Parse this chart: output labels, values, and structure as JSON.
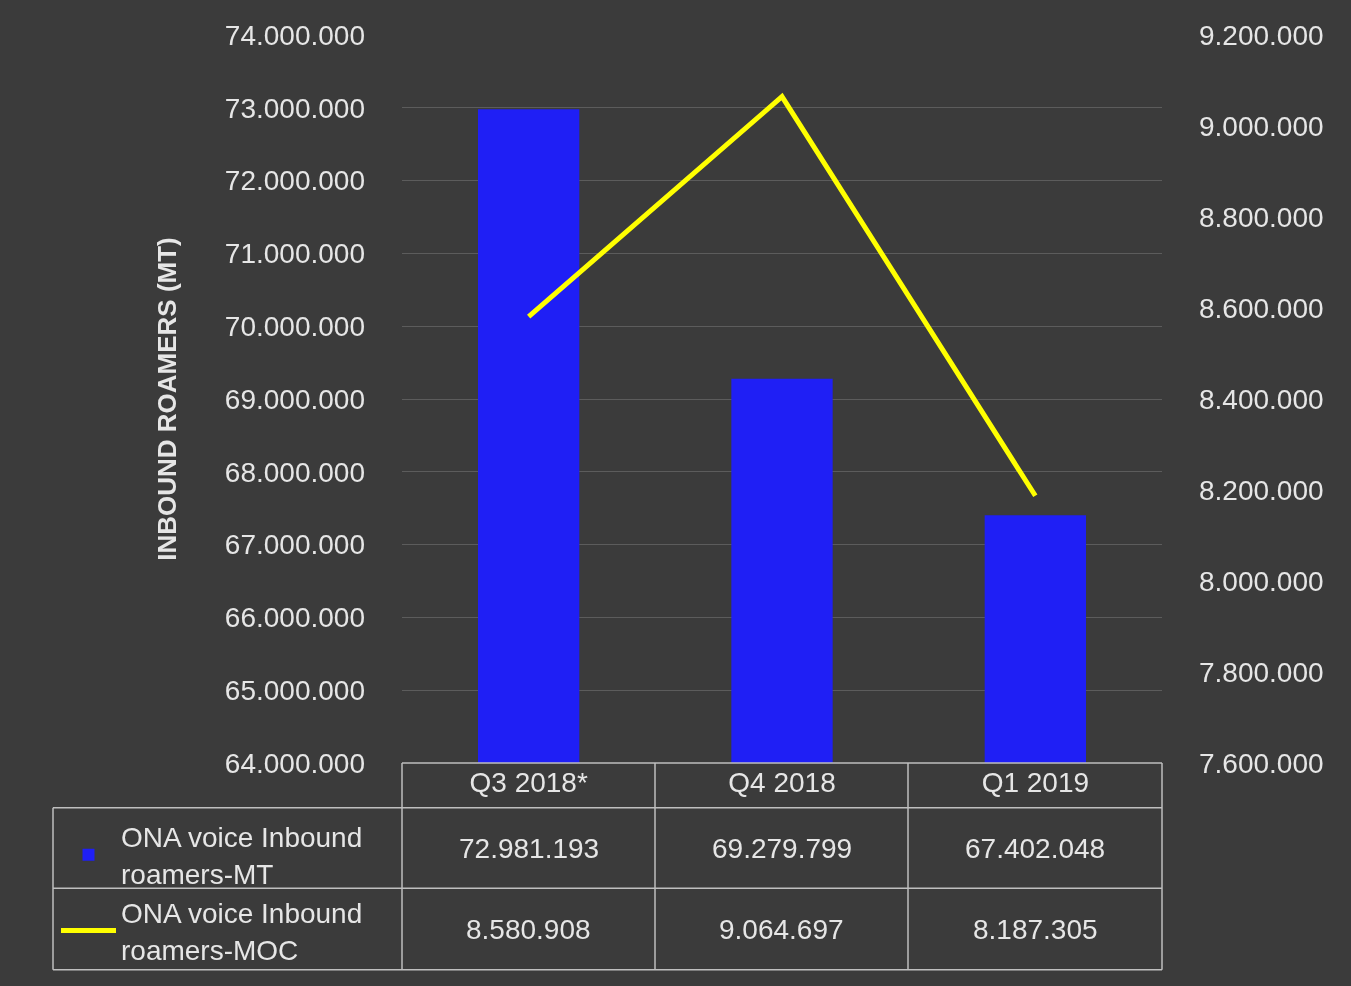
{
  "chart_data": {
    "type": "bar",
    "ylabel": "INBOUND ROAMERS (MT)",
    "categories": [
      "Q3 2018*",
      "Q4 2018",
      "Q1 2019"
    ],
    "series": [
      {
        "name": "ONA voice Inbound roamers-MT",
        "color": "#1f1ff5",
        "values": [
          72981193,
          69279799,
          67402048
        ],
        "value_labels": [
          "72.981.193",
          "69.279.799",
          "67.402.048"
        ]
      },
      {
        "name": "ONA voice Inbound roamers-MOC",
        "type": "line",
        "axis": "y2",
        "color": "#ffff00",
        "values": [
          8580908,
          9064697,
          8187305
        ],
        "value_labels": [
          "8.580.908",
          "9.064.697",
          "8.187.305"
        ]
      }
    ],
    "ylim": [
      64000000,
      74000000
    ],
    "yticks": [
      {
        "value": 64000000,
        "label": "64.000.000"
      },
      {
        "value": 65000000,
        "label": "65.000.000"
      },
      {
        "value": 66000000,
        "label": "66.000.000"
      },
      {
        "value": 67000000,
        "label": "67.000.000"
      },
      {
        "value": 68000000,
        "label": "68.000.000"
      },
      {
        "value": 69000000,
        "label": "69.000.000"
      },
      {
        "value": 70000000,
        "label": "70.000.000"
      },
      {
        "value": 71000000,
        "label": "71.000.000"
      },
      {
        "value": 72000000,
        "label": "72.000.000"
      },
      {
        "value": 73000000,
        "label": "73.000.000"
      },
      {
        "value": 74000000,
        "label": "74.000.000"
      }
    ],
    "y2lim": [
      7600000,
      9200000
    ],
    "y2ticks": [
      {
        "value": 7600000,
        "label": "7.600.000"
      },
      {
        "value": 7800000,
        "label": "7.800.000"
      },
      {
        "value": 8000000,
        "label": "8.000.000"
      },
      {
        "value": 8200000,
        "label": "8.200.000"
      },
      {
        "value": 8400000,
        "label": "8.400.000"
      },
      {
        "value": 8600000,
        "label": "8.600.000"
      },
      {
        "value": 8800000,
        "label": "8.800.000"
      },
      {
        "value": 9000000,
        "label": "9.000.000"
      },
      {
        "value": 9200000,
        "label": "9.200.000"
      }
    ],
    "grid": "y",
    "marker": "none",
    "line_style": "solid",
    "legend": "bottom left"
  }
}
